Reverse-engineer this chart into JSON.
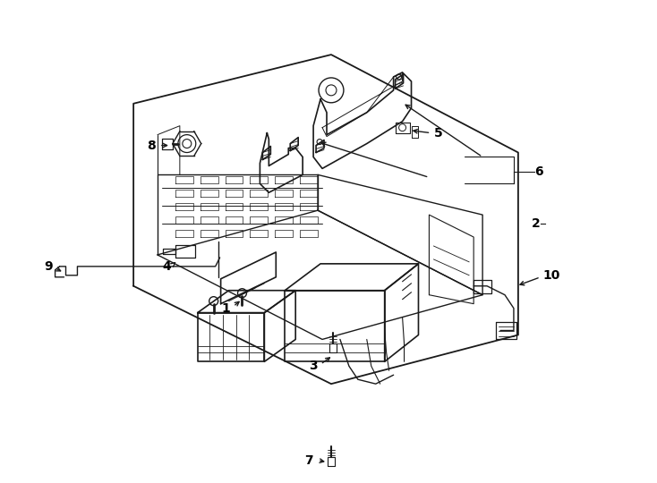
{
  "bg_color": "#ffffff",
  "line_color": "#1a1a1a",
  "label_color": "#000000",
  "figsize": [
    7.34,
    5.4
  ],
  "dpi": 100
}
